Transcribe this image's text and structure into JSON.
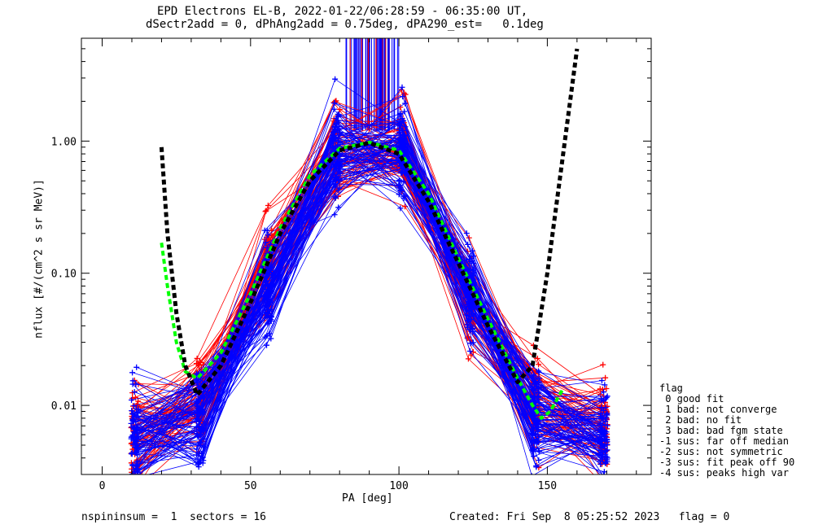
{
  "title_line1": "EPD Electrons EL-B, 2022-01-22/06:28:59 - 06:35:00 UT,",
  "title_line2": "dSectr2add = 0, dPhAng2add = 0.75deg, dPA290_est=   0.1deg",
  "footer_left": "nspininsum =  1  sectors = 16",
  "footer_right": "Created: Fri Sep  8 05:25:52 2023   flag = 0",
  "legend": {
    "title": "flag",
    "items": [
      " 0 good fit",
      " 1 bad: not converge",
      " 2 bad: no fit",
      " 3 bad: bad fgm state",
      "-1 sus: far off median",
      "-2 sus: not symmetric",
      "-3 sus: fit peak off 90",
      "-4 sus: peaks high var"
    ]
  },
  "chart_data": {
    "type": "line",
    "xlabel": "PA [deg]",
    "ylabel": "nflux [#/(cm^2 s sr MeV)]",
    "xlim": [
      -7,
      185
    ],
    "ylim": [
      0.003,
      6
    ],
    "yscale": "log",
    "xticks": [
      0,
      50,
      100,
      150
    ],
    "yticks": [
      {
        "value": 0.01,
        "label": "0.01"
      },
      {
        "value": 0.1,
        "label": "0.10"
      },
      {
        "value": 1.0,
        "label": "1.00"
      }
    ],
    "series": [
      {
        "color": "#0000ff",
        "marker": "+",
        "x": [
          11,
          33,
          56,
          79,
          101,
          124,
          146,
          169
        ],
        "y_typical": [
          0.006,
          0.008,
          0.08,
          0.85,
          0.9,
          0.07,
          0.008,
          0.006
        ],
        "approximate_spread_factor": 2.5
      },
      {
        "color": "#ff0000",
        "marker": "+",
        "x": [
          11,
          33,
          56,
          79,
          101,
          124,
          146,
          169
        ],
        "y_typical": [
          0.006,
          0.01,
          0.12,
          0.8,
          0.85,
          0.06,
          0.01,
          0.007
        ],
        "approximate_spread_factor": 2.5
      },
      {
        "color": "#000000",
        "style": "thick dashed",
        "x": [
          20,
          22,
          25,
          28,
          32,
          40,
          50,
          60,
          70,
          80,
          90,
          100,
          110,
          120,
          130,
          140,
          145,
          150,
          155,
          160
        ],
        "y": [
          0.9,
          0.2,
          0.05,
          0.02,
          0.012,
          0.02,
          0.06,
          0.2,
          0.5,
          0.85,
          0.97,
          0.8,
          0.35,
          0.12,
          0.04,
          0.015,
          0.02,
          0.1,
          0.7,
          5.0
        ]
      },
      {
        "color": "#00ff00",
        "style": "thick dashed",
        "x": [
          20,
          22,
          25,
          28,
          32,
          40,
          50,
          60,
          70,
          80,
          90,
          100,
          110,
          120,
          130,
          140,
          145,
          148,
          151,
          155
        ],
        "y": [
          0.17,
          0.08,
          0.03,
          0.018,
          0.016,
          0.025,
          0.07,
          0.22,
          0.55,
          0.88,
          0.98,
          0.85,
          0.4,
          0.13,
          0.045,
          0.016,
          0.01,
          0.008,
          0.009,
          0.013
        ]
      }
    ],
    "overflow_lines": {
      "x_range": [
        82,
        100
      ],
      "color_blue": "#0000ff",
      "color_red": "#ff0000"
    }
  }
}
